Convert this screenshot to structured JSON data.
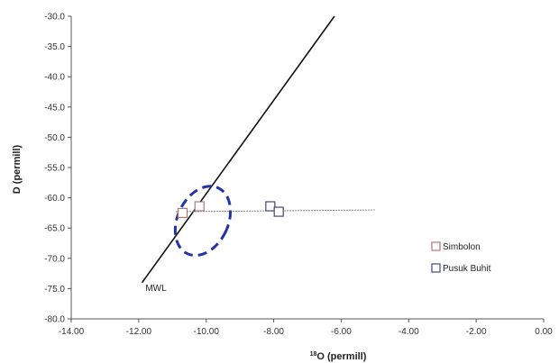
{
  "chart_data": {
    "type": "scatter",
    "title": "",
    "xlabel_sup": "18",
    "xlabel": "O (permill)",
    "ylabel": "D (permill)",
    "xlim": [
      -14,
      0
    ],
    "ylim": [
      -80,
      -30
    ],
    "x_ticks": [
      -14,
      -12,
      -10,
      -8,
      -6,
      -4,
      -2,
      0
    ],
    "x_tick_labels": [
      "-14.00",
      "-12.00",
      "-10.00",
      "-8.00",
      "-6.00",
      "-4.00",
      "-2.00",
      "0.00"
    ],
    "y_ticks": [
      -30,
      -35,
      -40,
      -45,
      -50,
      -55,
      -60,
      -65,
      -70,
      -75,
      -80
    ],
    "y_tick_labels": [
      "-30.0",
      "-35.0",
      "-40.0",
      "-45.0",
      "-50.0",
      "-55.0",
      "-60.0",
      "-65.0",
      "-70.0",
      "-75.0",
      "-80.0"
    ],
    "grid": false,
    "legend_position": "right",
    "series": [
      {
        "name": "Simbolon",
        "color": "#b07878",
        "marker": "square",
        "points": [
          [
            -10.7,
            -62.5
          ],
          [
            -10.2,
            -61.4
          ]
        ]
      },
      {
        "name": "Pusuk Buhit",
        "color": "#45457a",
        "marker": "square",
        "points": [
          [
            -8.1,
            -61.4
          ],
          [
            -7.85,
            -62.3
          ]
        ]
      }
    ],
    "lines": [
      {
        "label": "MWL",
        "color": "#111111",
        "x": [
          -11.9,
          -6.2
        ],
        "y": [
          -74.0,
          -30.0
        ]
      },
      {
        "label": "",
        "color": "#888888",
        "dashed": true,
        "x": [
          -10.9,
          -5.0
        ],
        "y": [
          -62.3,
          -62.0
        ]
      }
    ],
    "annotations": [
      {
        "text": "MWL",
        "x": -11.8,
        "y": -75.4
      }
    ],
    "highlight_ellipse": {
      "color": "#2233aa",
      "cx": -10.1,
      "cy": -63.8,
      "rx_data": 0.75,
      "ry_data": 6.0,
      "rotation_deg": 25
    }
  }
}
